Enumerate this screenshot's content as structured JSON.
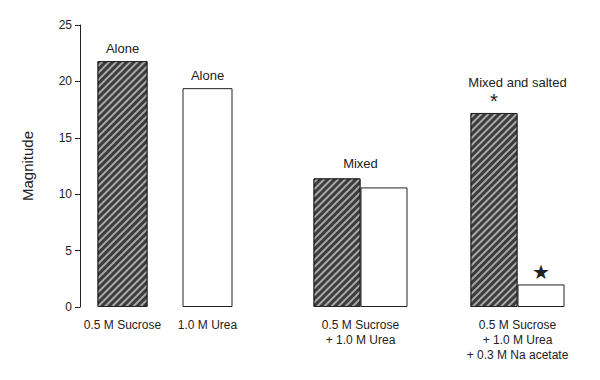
{
  "chart_data": {
    "type": "bar",
    "categories": [
      "0.5 M Sucrose",
      "1.0 M Urea",
      "0.5 M Sucrose\n+ 1.0 M Urea",
      "0.5 M Sucrose\n+ 1.0 M Urea\n+ 0.3 M Na acetate"
    ],
    "series": [
      {
        "name": "0.5 M Sucrose",
        "color": "#3c3c3c",
        "values": [
          21.8,
          null,
          11.4,
          17.2
        ]
      },
      {
        "name": "1.0 M Urea",
        "color": "#ffffff",
        "values": [
          null,
          19.4,
          10.6,
          2.0
        ]
      }
    ],
    "y_label": "Magnitude",
    "ylim": [
      0,
      25
    ],
    "yticks": [
      0,
      5,
      10,
      15,
      20,
      25
    ],
    "grid": false,
    "annotations": [
      {
        "text": "Alone",
        "category": "0.5 M Sucrose",
        "series": "0.5 M Sucrose"
      },
      {
        "text": "Alone",
        "category": "1.0 M Urea",
        "series": "1.0 M Urea"
      },
      {
        "text": "Mixed",
        "category": "0.5 M Sucrose\n+ 1.0 M Urea"
      },
      {
        "text": "Mixed and salted",
        "category": "0.5 M Sucrose\n+ 1.0 M Urea\n+ 0.3 M Na acetate"
      },
      {
        "text": "*",
        "category": "0.5 M Sucrose\n+ 1.0 M Urea\n+ 0.3 M Na acetate",
        "series": "0.5 M Sucrose"
      },
      {
        "text": "★",
        "category": "0.5 M Sucrose\n+ 1.0 M Urea\n+ 0.3 M Na acetate",
        "series": "1.0 M Urea"
      }
    ]
  }
}
